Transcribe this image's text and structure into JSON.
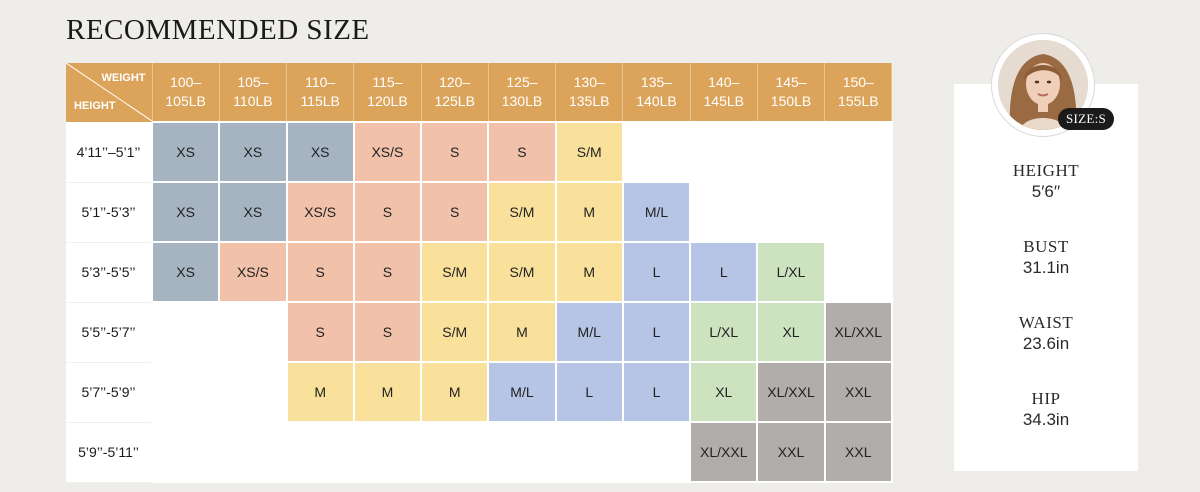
{
  "title": "RECOMMENDED SIZE",
  "table": {
    "corner_weight": "WEIGHT",
    "corner_height": "HEIGHT",
    "weights": [
      [
        "100–",
        "105LB"
      ],
      [
        "105–",
        "110LB"
      ],
      [
        "110–",
        "115LB"
      ],
      [
        "115–",
        "120LB"
      ],
      [
        "120–",
        "125LB"
      ],
      [
        "125–",
        "130LB"
      ],
      [
        "130–",
        "135LB"
      ],
      [
        "135–",
        "140LB"
      ],
      [
        "140–",
        "145LB"
      ],
      [
        "145–",
        "150LB"
      ],
      [
        "150–",
        "155LB"
      ]
    ],
    "rows": [
      {
        "height": "4’11’’–5’1’’",
        "cells": [
          "XS",
          "XS",
          "XS",
          "XS/S",
          "S",
          "S",
          "S/M",
          "",
          "",
          "",
          ""
        ]
      },
      {
        "height": "5’1’’-5’3’’",
        "cells": [
          "XS",
          "XS",
          "XS/S",
          "S",
          "S",
          "S/M",
          "M",
          "M/L",
          "",
          "",
          ""
        ]
      },
      {
        "height": "5’3’’-5’5’’",
        "cells": [
          "XS",
          "XS/S",
          "S",
          "S",
          "S/M",
          "S/M",
          "M",
          "L",
          "L",
          "L/XL",
          ""
        ]
      },
      {
        "height": "5’5’’-5’7’’",
        "cells": [
          "",
          "",
          "S",
          "S",
          "S/M",
          "M",
          "M/L",
          "L",
          "L/XL",
          "XL",
          "XL/XXL"
        ]
      },
      {
        "height": "5’7’’-5’9’’",
        "cells": [
          "",
          "",
          "M",
          "M",
          "M",
          "M/L",
          "L",
          "L",
          "XL",
          "XL/XXL",
          "XXL"
        ]
      },
      {
        "height": "5’9’’-5’11’’",
        "cells": [
          "",
          "",
          "",
          "",
          "",
          "",
          "",
          "",
          "XL/XXL",
          "XXL",
          "XXL"
        ]
      }
    ],
    "colors": {
      "XS": "#a6b4c2",
      "XS/S": "#f2c1aa",
      "S": "#f2c1aa",
      "S/M": "#f9e19b",
      "M": "#f9e19b",
      "M/L": "#b6c4e6",
      "L": "#b6c4e6",
      "L/XL": "#cde3c0",
      "XL": "#cde3c0",
      "XL/XXL": "#b1adab",
      "XXL": "#b1adab"
    }
  },
  "model": {
    "badge": "SIZE:S",
    "stats": [
      {
        "label": "HEIGHT",
        "value": "5′6′′"
      },
      {
        "label": "BUST",
        "value": "31.1in"
      },
      {
        "label": "WAIST",
        "value": "23.6in"
      },
      {
        "label": "HIP",
        "value": "34.3in"
      }
    ]
  }
}
